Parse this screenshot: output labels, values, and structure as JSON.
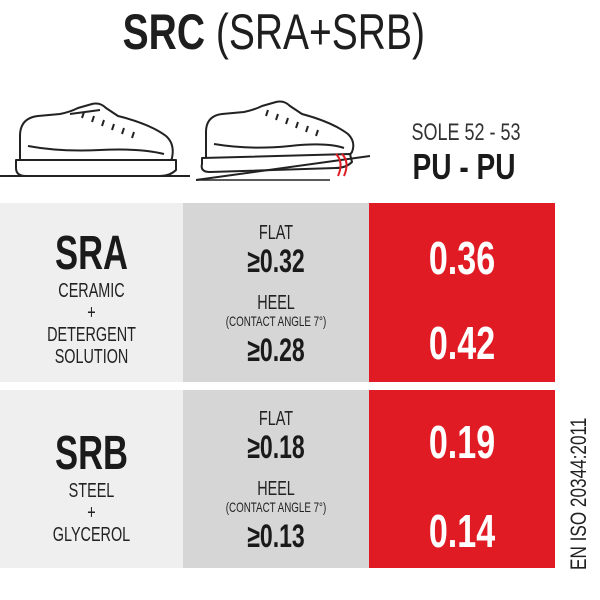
{
  "title": {
    "bold": "SRC",
    "light": "(SRA+SRB)"
  },
  "sole": {
    "label": "SOLE 52 - 53",
    "material": "PU - PU"
  },
  "rows": [
    {
      "grade": "SRA",
      "desc": [
        "CERAMIC",
        "+",
        "DETERGENT",
        "SOLUTION"
      ],
      "flat_label": "FLAT",
      "flat_req": "≥0.32",
      "heel_label": "HEEL",
      "heel_sub": "(CONTACT ANGLE 7°)",
      "heel_req": "≥0.28",
      "flat_result": "0.36",
      "heel_result": "0.42"
    },
    {
      "grade": "SRB",
      "desc": [
        "STEEL",
        "+",
        "GLYCEROL"
      ],
      "flat_label": "FLAT",
      "flat_req": "≥0.18",
      "heel_label": "HEEL",
      "heel_sub": "(CONTACT ANGLE 7°)",
      "heel_req": "≥0.13",
      "flat_result": "0.19",
      "heel_result": "0.14"
    }
  ],
  "standard": "EN ISO 20344:2011",
  "colors": {
    "accent": "#e01b24",
    "left_bg": "#efefef",
    "mid_bg": "#d6d6d6"
  },
  "icons": [
    "shoe-flat-icon",
    "shoe-heel-tilt-icon"
  ]
}
